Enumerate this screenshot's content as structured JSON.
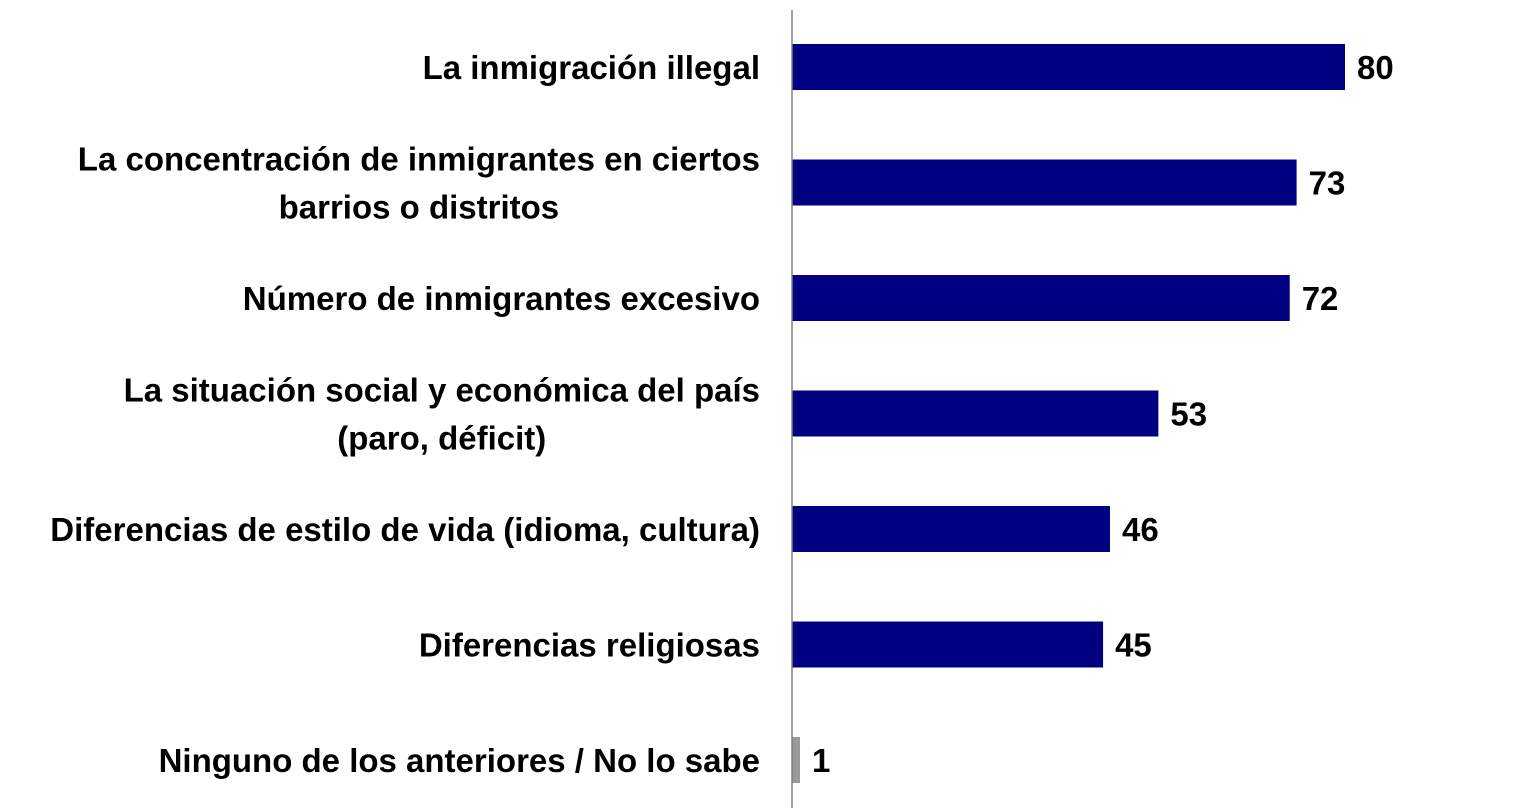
{
  "chart_data": {
    "type": "bar",
    "orientation": "horizontal",
    "categories": [
      [
        "La inmigración illegal"
      ],
      [
        "La concentración de inmigrantes en ciertos",
        "barrios o distritos"
      ],
      [
        "Número de inmigrantes excesivo"
      ],
      [
        "La situación social y económica del país",
        "(paro, déficit)"
      ],
      [
        "Diferencias de estilo de vida (idioma, cultura)"
      ],
      [
        "Diferencias religiosas"
      ],
      [
        "Ninguno de los anteriores / No lo sabe"
      ]
    ],
    "values": [
      80,
      73,
      72,
      53,
      46,
      45,
      1
    ],
    "data_labels": [
      "80",
      "73",
      "72",
      "53",
      "46",
      "45",
      "1"
    ],
    "bar_colors": [
      "#000080",
      "#000080",
      "#000080",
      "#000080",
      "#000080",
      "#000080",
      "#999999"
    ],
    "axis_color": "#808080",
    "xlim": [
      0,
      80
    ],
    "grid": false,
    "legend": "none"
  }
}
